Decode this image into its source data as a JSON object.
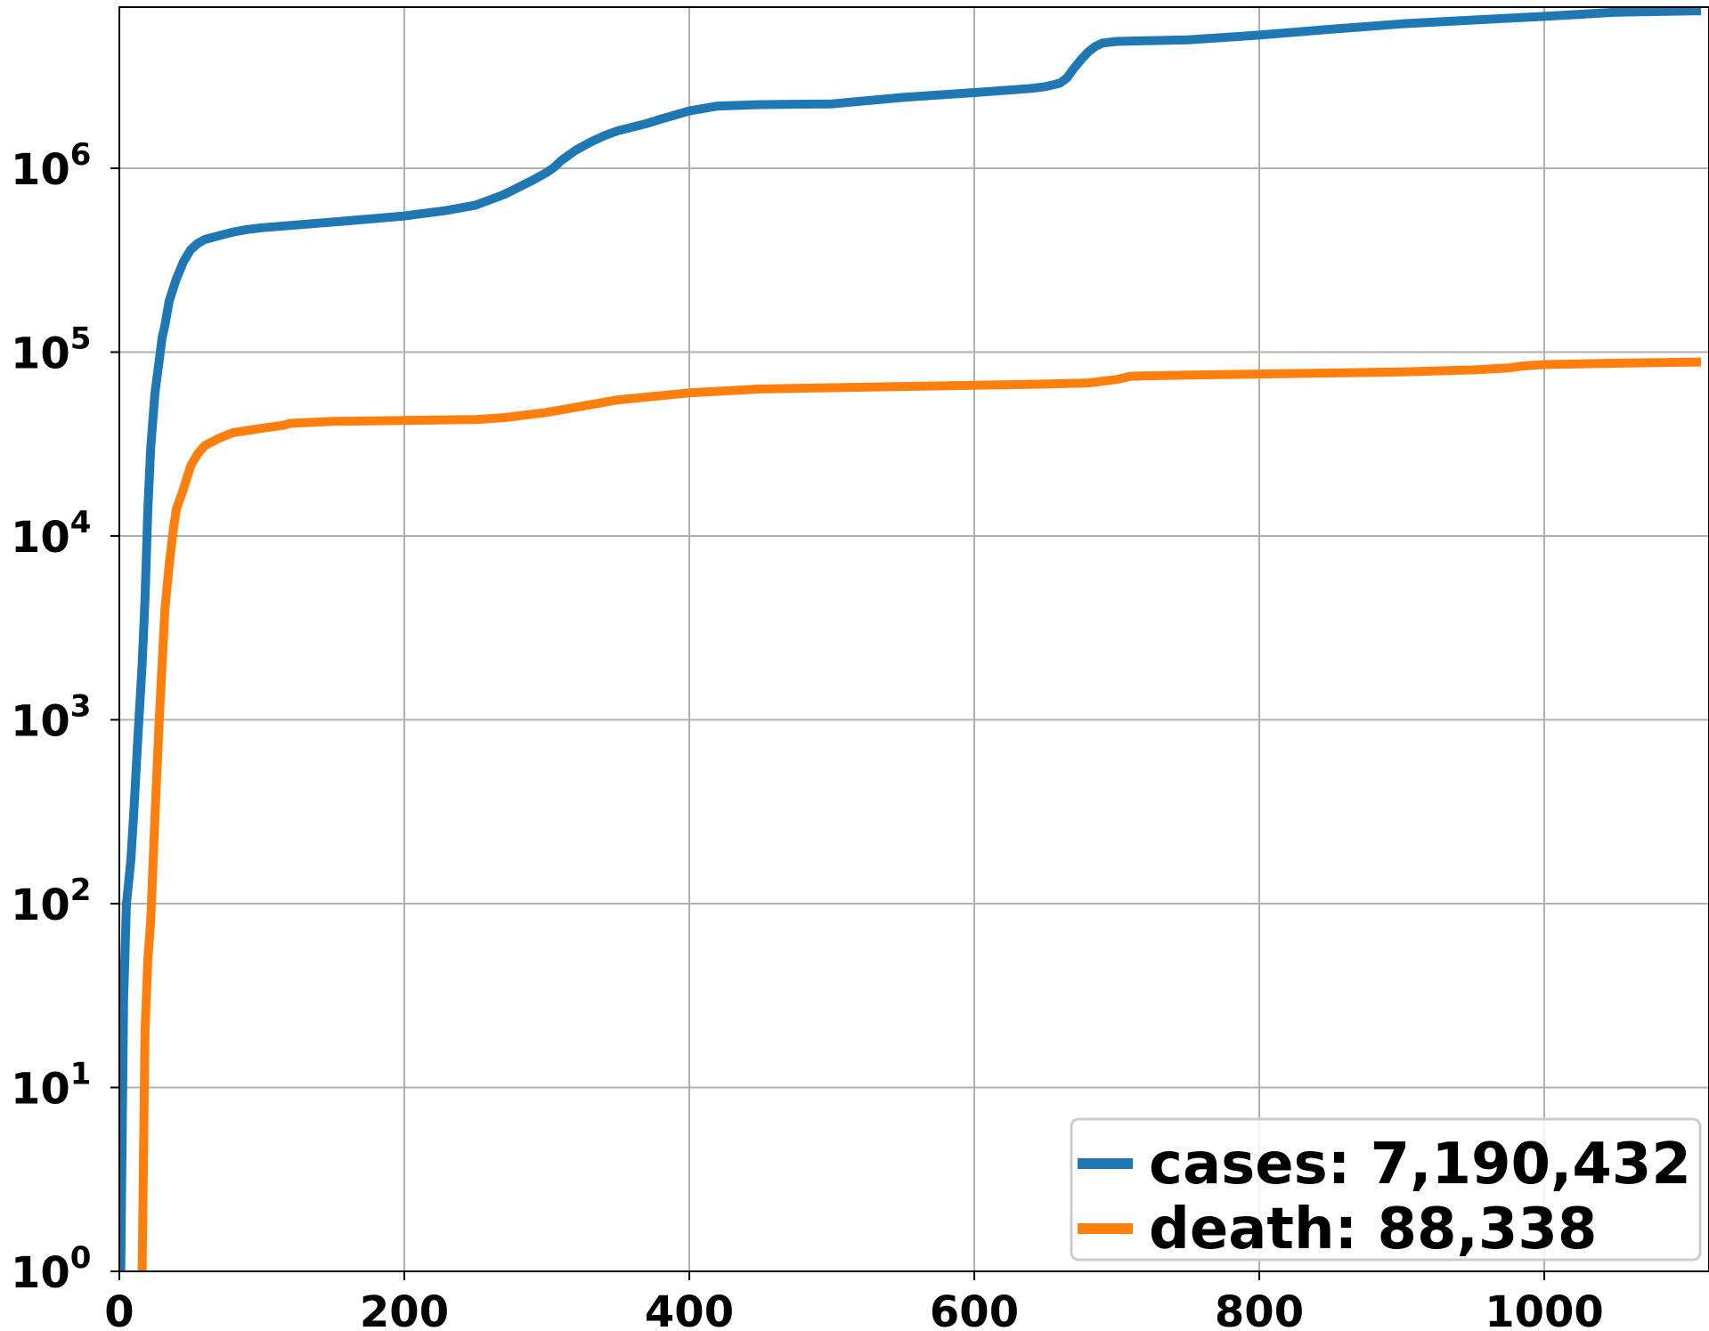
{
  "chart_data": {
    "type": "line",
    "title": "",
    "xlabel": "",
    "ylabel": "",
    "xlim": [
      0,
      1110
    ],
    "ylim": [
      1,
      8000000
    ],
    "yscale": "log",
    "grid": true,
    "legend_position": "bottom-right",
    "x_ticks": [
      {
        "value": 0,
        "label": "0"
      },
      {
        "value": 200,
        "label": "200"
      },
      {
        "value": 400,
        "label": "400"
      },
      {
        "value": 600,
        "label": "600"
      },
      {
        "value": 800,
        "label": "800"
      },
      {
        "value": 1000,
        "label": "1000"
      }
    ],
    "y_ticks": [
      {
        "value": 1,
        "base": "10",
        "exp": "0"
      },
      {
        "value": 10,
        "base": "10",
        "exp": "1"
      },
      {
        "value": 100,
        "base": "10",
        "exp": "2"
      },
      {
        "value": 1000,
        "base": "10",
        "exp": "3"
      },
      {
        "value": 10000,
        "base": "10",
        "exp": "4"
      },
      {
        "value": 100000,
        "base": "10",
        "exp": "5"
      },
      {
        "value": 1000000,
        "base": "10",
        "exp": "6"
      }
    ],
    "series": [
      {
        "name": "cases: 7,190,432",
        "color": "#1f77b4",
        "x": [
          1,
          3,
          5,
          8,
          10,
          13,
          16,
          18,
          20,
          22,
          25,
          28,
          30,
          32,
          35,
          40,
          45,
          50,
          55,
          60,
          70,
          80,
          90,
          100,
          150,
          200,
          230,
          250,
          270,
          290,
          300,
          305,
          310,
          320,
          330,
          340,
          350,
          370,
          380,
          400,
          420,
          450,
          500,
          550,
          600,
          640,
          650,
          660,
          665,
          670,
          675,
          680,
          685,
          690,
          700,
          750,
          800,
          850,
          900,
          950,
          1000,
          1050,
          1110
        ],
        "y": [
          1,
          30,
          100,
          170,
          300,
          800,
          2000,
          4500,
          14000,
          30000,
          60000,
          90000,
          120000,
          140000,
          190000,
          250000,
          310000,
          360000,
          390000,
          410000,
          430000,
          450000,
          465000,
          475000,
          510000,
          550000,
          590000,
          630000,
          720000,
          860000,
          950000,
          1010000,
          1100000,
          1250000,
          1380000,
          1500000,
          1600000,
          1750000,
          1850000,
          2050000,
          2180000,
          2220000,
          2240000,
          2430000,
          2580000,
          2720000,
          2780000,
          2900000,
          3100000,
          3500000,
          3900000,
          4300000,
          4600000,
          4800000,
          4900000,
          5000000,
          5300000,
          5700000,
          6100000,
          6400000,
          6700000,
          7050000,
          7190432
        ]
      },
      {
        "name": "death: 88,338",
        "color": "#ff7f0e",
        "x": [
          16,
          18,
          20,
          22,
          25,
          28,
          30,
          32,
          35,
          38,
          40,
          45,
          50,
          55,
          60,
          70,
          80,
          90,
          100,
          115,
          120,
          150,
          200,
          250,
          270,
          300,
          350,
          400,
          450,
          500,
          550,
          600,
          650,
          680,
          700,
          710,
          750,
          800,
          900,
          950,
          975,
          985,
          1000,
          1050,
          1110
        ],
        "y": [
          1,
          20,
          50,
          80,
          300,
          1000,
          2000,
          4000,
          7000,
          11000,
          14000,
          18000,
          24000,
          28000,
          31000,
          34000,
          36500,
          37500,
          38500,
          40000,
          41000,
          42000,
          42500,
          43000,
          44000,
          47000,
          55000,
          60000,
          63000,
          64000,
          65000,
          66000,
          67000,
          68000,
          71000,
          74000,
          75000,
          76000,
          78000,
          80000,
          82000,
          84000,
          85500,
          87000,
          88338
        ]
      }
    ]
  }
}
